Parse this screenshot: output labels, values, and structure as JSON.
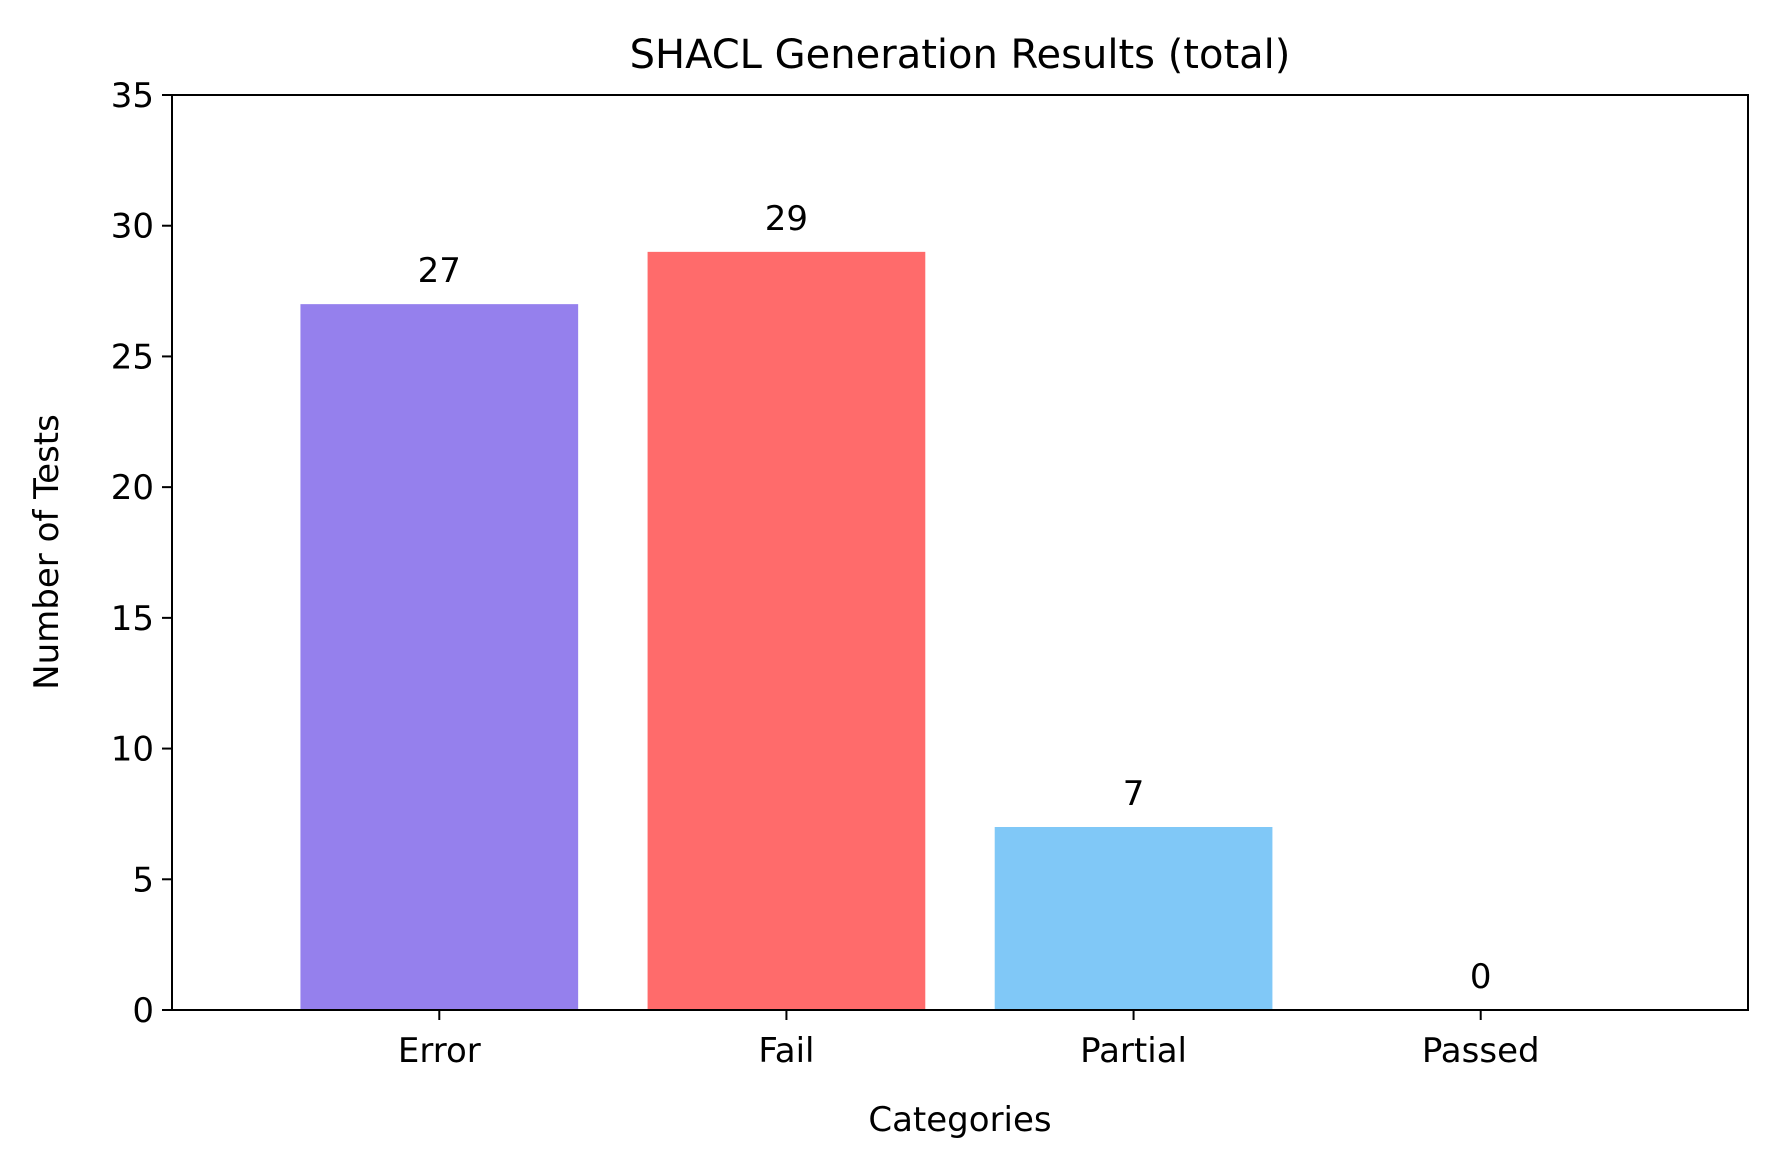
{
  "chart_data": {
    "type": "bar",
    "title": "SHACL Generation Results (total)",
    "xlabel": "Categories",
    "ylabel": "Number of Tests",
    "categories": [
      "Error",
      "Fail",
      "Partial",
      "Passed"
    ],
    "values": [
      27,
      29,
      7,
      0
    ],
    "data_labels": [
      "27",
      "29",
      "7",
      "0"
    ],
    "colors": [
      "#9580ed",
      "#ff6b6b",
      "#80c8f7",
      "#4caf50"
    ],
    "ylim": [
      0,
      35
    ],
    "yticks": [
      0,
      5,
      10,
      15,
      20,
      25,
      30,
      35
    ],
    "ytick_labels": [
      "0",
      "5",
      "10",
      "15",
      "20",
      "25",
      "30",
      "35"
    ],
    "grid": false,
    "legend": "none"
  }
}
